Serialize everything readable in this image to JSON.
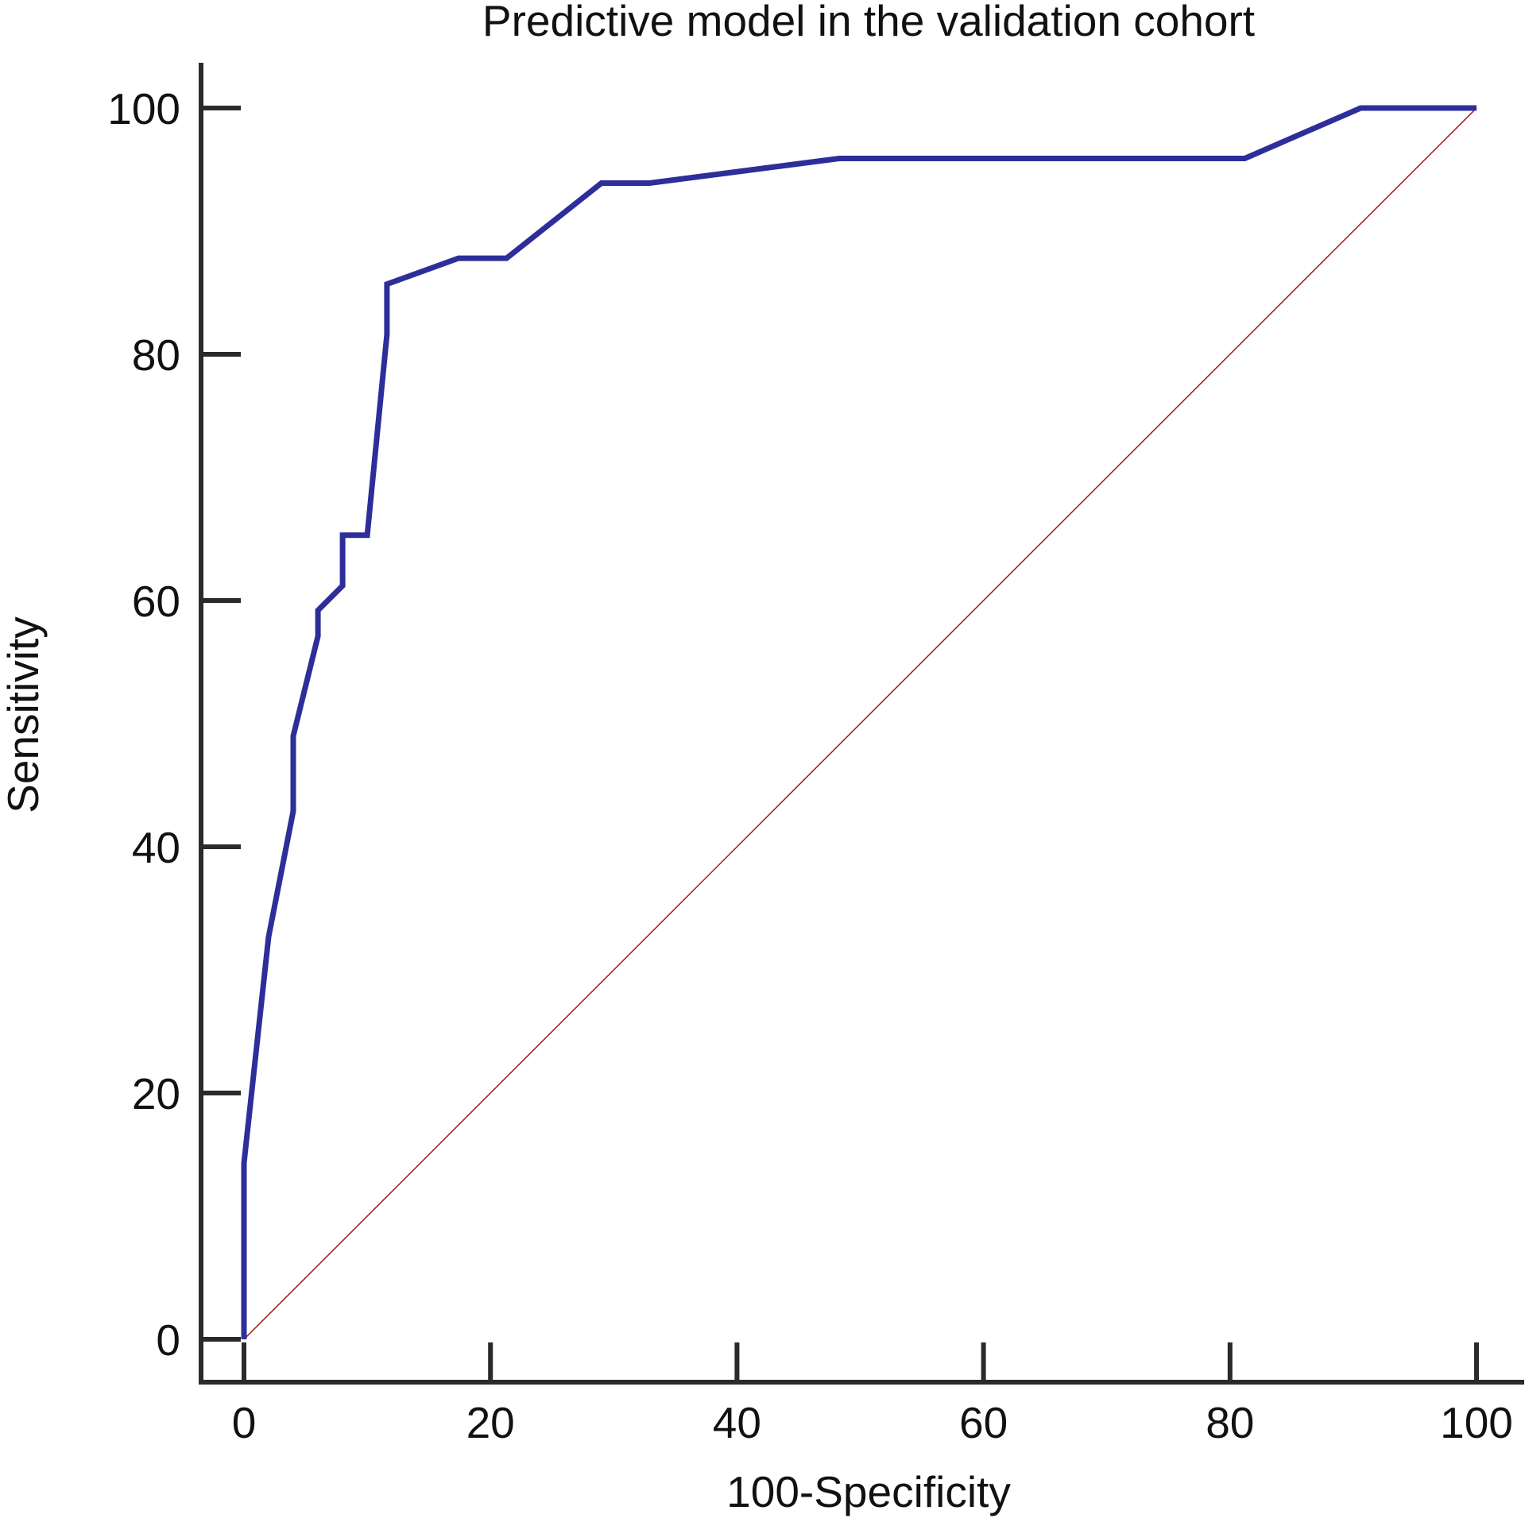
{
  "chart_data": {
    "type": "line",
    "title": "Predictive model in the validation cohort",
    "xlabel": "100-Specificity",
    "ylabel": "Sensitivity",
    "xlim": [
      0,
      100
    ],
    "ylim": [
      0,
      100
    ],
    "xticks": [
      0,
      20,
      40,
      60,
      80,
      100
    ],
    "yticks": [
      0,
      20,
      40,
      60,
      80,
      100
    ],
    "grid": false,
    "series": [
      {
        "color": "#2e2e9a",
        "x": [
          0,
          0,
          2,
          4,
          4,
          6,
          6,
          8,
          8,
          10,
          11.6,
          11.6,
          17.4,
          21.3,
          29,
          32.9,
          48.3,
          81.2,
          90.6,
          100
        ],
        "y": [
          0,
          14.3,
          32.7,
          42.9,
          49,
          57.1,
          59.2,
          61.2,
          65.3,
          65.3,
          81.6,
          85.7,
          87.8,
          87.8,
          93.9,
          93.9,
          95.9,
          95.9,
          100,
          100
        ]
      },
      {
        "color": "#a01818",
        "x": [
          0,
          100
        ],
        "y": [
          0,
          100
        ]
      }
    ]
  }
}
